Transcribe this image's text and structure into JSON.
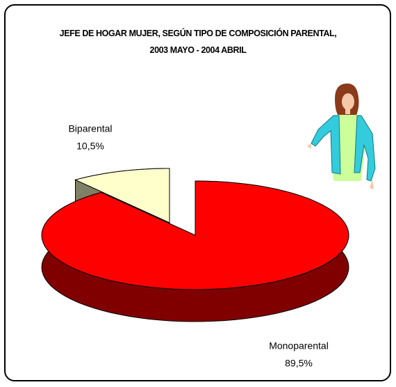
{
  "chart_data": {
    "type": "pie3d",
    "title": "JEFE DE HOGAR MUJER, SEGÚN TIPO DE COMPOSICIÓN PARENTAL, 2003 MAYO - 2004 ABRIL",
    "categories": [
      "Biparental",
      "Monoparental"
    ],
    "values": [
      10.5,
      89.5
    ],
    "value_labels": [
      "10,5%",
      "89,5%"
    ],
    "colors": [
      "#ffffcc",
      "#ff0000"
    ],
    "side_colors": [
      "#808066",
      "#800000"
    ]
  }
}
